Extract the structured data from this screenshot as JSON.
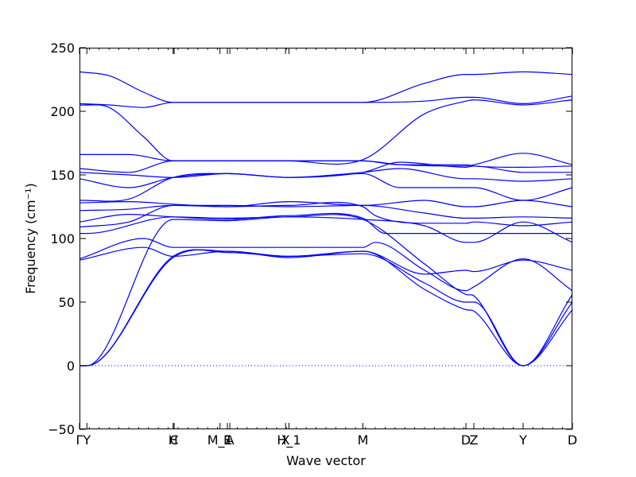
{
  "chart_data": {
    "type": "line",
    "xlabel": "Wave vector",
    "ylabel": "Frequency (cm⁻¹)",
    "ylim": [
      -50,
      250
    ],
    "yticks": [
      -50,
      0,
      50,
      100,
      150,
      200,
      250
    ],
    "x_range": [
      0,
      1
    ],
    "xticks": [
      {
        "label": "Γ",
        "pos": 0.0
      },
      {
        "label": "Y",
        "pos": 0.015
      },
      {
        "label": "H",
        "pos": 0.19
      },
      {
        "label": "C",
        "pos": 0.192
      },
      {
        "label": "M_1",
        "pos": 0.285
      },
      {
        "label": "E",
        "pos": 0.3
      },
      {
        "label": "A",
        "pos": 0.305
      },
      {
        "label": "X",
        "pos": 0.418
      },
      {
        "label": "H_1",
        "pos": 0.425
      },
      {
        "label": "M",
        "pos": 0.575
      },
      {
        "label": "D",
        "pos": 0.784
      },
      {
        "label": "Z",
        "pos": 0.8
      },
      {
        "label": "Y",
        "pos": 0.9
      },
      {
        "label": "D",
        "pos": 1.0
      }
    ],
    "zero_line": true,
    "line_color": "#0000ff",
    "zero_line_color": "#0000ff",
    "series": [
      {
        "x": [
          0,
          0.015,
          0.19,
          0.3,
          0.425,
          0.575,
          0.7,
          0.784,
          0.8,
          0.9,
          1.0
        ],
        "y": [
          0,
          0,
          85,
          90,
          85,
          90,
          60,
          44,
          43,
          0,
          44
        ]
      },
      {
        "x": [
          0,
          0.015,
          0.19,
          0.3,
          0.425,
          0.575,
          0.7,
          0.784,
          0.8,
          0.9,
          1.0
        ],
        "y": [
          0,
          0,
          86,
          89,
          86,
          88,
          65,
          50,
          50,
          0,
          50
        ]
      },
      {
        "x": [
          0,
          0.015,
          0.19,
          0.3,
          0.425,
          0.575,
          0.7,
          0.784,
          0.8,
          0.9,
          1.0
        ],
        "y": [
          0,
          0,
          115,
          114,
          117,
          115,
          80,
          56,
          55,
          0,
          56
        ]
      },
      {
        "x": [
          0,
          0.13,
          0.19,
          0.3,
          0.425,
          0.575,
          0.6,
          0.7,
          0.784,
          0.8,
          0.9,
          1.0
        ],
        "y": [
          84,
          100,
          93,
          93,
          93,
          93,
          97,
          75,
          59,
          62,
          84,
          59
        ]
      },
      {
        "x": [
          0,
          0.13,
          0.19,
          0.3,
          0.425,
          0.575,
          0.7,
          0.784,
          0.8,
          0.9,
          1.0
        ],
        "y": [
          83,
          93,
          86,
          90,
          86,
          90,
          72,
          75,
          74,
          83,
          75
        ]
      },
      {
        "x": [
          0,
          0.015,
          0.19,
          0.3,
          0.425,
          0.575,
          0.7,
          0.784,
          0.8,
          0.9,
          1.0
        ],
        "y": [
          104,
          104,
          117,
          116,
          117,
          115,
          110,
          97,
          97,
          113,
          97
        ]
      },
      {
        "x": [
          0,
          0.1,
          0.19,
          0.3,
          0.425,
          0.575,
          0.62,
          0.7,
          0.784,
          0.8,
          0.9,
          1.0
        ],
        "y": [
          113,
          119,
          117,
          115,
          118,
          116,
          104,
          104,
          104,
          104,
          104,
          104
        ]
      },
      {
        "x": [
          0,
          0.1,
          0.19,
          0.3,
          0.425,
          0.575,
          0.6,
          0.7,
          0.784,
          0.8,
          0.9,
          1.0
        ],
        "y": [
          109,
          113,
          126,
          125,
          126,
          125,
          118,
          112,
          112,
          113,
          110,
          113
        ]
      },
      {
        "x": [
          0,
          0.1,
          0.19,
          0.3,
          0.425,
          0.575,
          0.7,
          0.784,
          0.8,
          0.9,
          1.0
        ],
        "y": [
          122,
          123,
          126,
          126,
          125,
          126,
          120,
          116,
          116,
          117,
          116
        ]
      },
      {
        "x": [
          0,
          0.1,
          0.19,
          0.3,
          0.425,
          0.575,
          0.7,
          0.784,
          0.8,
          0.9,
          1.0
        ],
        "y": [
          128,
          129,
          127,
          125,
          129,
          126,
          130,
          125,
          125,
          130,
          125
        ]
      },
      {
        "x": [
          0,
          0.1,
          0.19,
          0.3,
          0.425,
          0.575,
          0.65,
          0.784,
          0.8,
          0.9,
          1.0
        ],
        "y": [
          130,
          131,
          148,
          151,
          148,
          151,
          140,
          140,
          140,
          130,
          140
        ]
      },
      {
        "x": [
          0,
          0.1,
          0.19,
          0.3,
          0.425,
          0.575,
          0.65,
          0.784,
          0.8,
          0.9,
          1.0
        ],
        "y": [
          147,
          140,
          148,
          151,
          148,
          152,
          155,
          147,
          147,
          145,
          147
        ]
      },
      {
        "x": [
          0,
          0.1,
          0.19,
          0.3,
          0.425,
          0.575,
          0.65,
          0.784,
          0.8,
          0.9,
          1.0
        ],
        "y": [
          152,
          150,
          148,
          151,
          148,
          152,
          160,
          156,
          157,
          152,
          152
        ]
      },
      {
        "x": [
          0,
          0.1,
          0.19,
          0.3,
          0.425,
          0.575,
          0.65,
          0.784,
          0.8,
          0.9,
          1.0
        ],
        "y": [
          155,
          152,
          161,
          161,
          161,
          161,
          158,
          158,
          157,
          156,
          157
        ]
      },
      {
        "x": [
          0,
          0.1,
          0.19,
          0.3,
          0.425,
          0.575,
          0.65,
          0.784,
          0.8,
          0.9,
          1.0
        ],
        "y": [
          166,
          166,
          161,
          161,
          161,
          161,
          158,
          157,
          158,
          167,
          158
        ]
      },
      {
        "x": [
          0,
          0.06,
          0.13,
          0.19,
          0.3,
          0.425,
          0.575,
          0.7,
          0.784,
          0.8,
          0.9,
          1.0
        ],
        "y": [
          205,
          203,
          180,
          161,
          161,
          161,
          162,
          198,
          208,
          209,
          205,
          209
        ]
      },
      {
        "x": [
          0,
          0.06,
          0.13,
          0.19,
          0.3,
          0.425,
          0.575,
          0.7,
          0.784,
          0.8,
          0.9,
          1.0
        ],
        "y": [
          206,
          205,
          203,
          207,
          207,
          207,
          207,
          208,
          211,
          211,
          206,
          212
        ]
      },
      {
        "x": [
          0,
          0.06,
          0.13,
          0.19,
          0.3,
          0.425,
          0.575,
          0.7,
          0.784,
          0.8,
          0.9,
          1.0
        ],
        "y": [
          231,
          228,
          215,
          207,
          207,
          207,
          207,
          222,
          229,
          229,
          231,
          229
        ]
      }
    ]
  }
}
